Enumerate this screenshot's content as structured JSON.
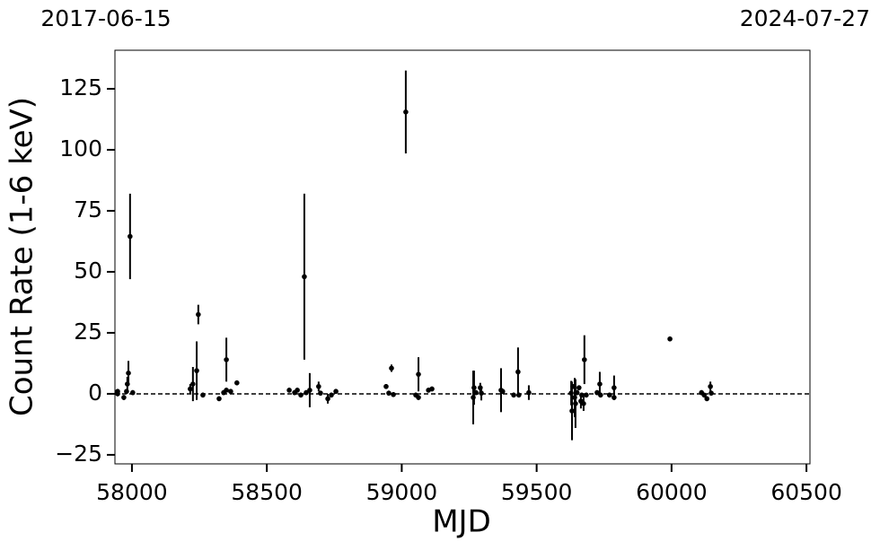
{
  "chart_data": {
    "type": "errorbar-scatter",
    "xlabel": "MJD",
    "ylabel": "Count Rate (1-6 keV)",
    "top_labels": [
      "2017-06-15",
      "2024-07-27"
    ],
    "x": [
      57947,
      57947,
      57970,
      57983,
      57987,
      57993,
      57980,
      58003,
      58216,
      58226,
      58240,
      58246,
      58263,
      58323,
      58340,
      58350,
      58350,
      58366,
      58389,
      58583,
      58603,
      58613,
      58626,
      58639,
      58646,
      58659,
      58692,
      58699,
      58726,
      58739,
      58756,
      58942,
      58952,
      58962,
      58969,
      59015,
      59052,
      59062,
      59062,
      59099,
      59112,
      59265,
      59268,
      59275,
      59291,
      59295,
      59368,
      59374,
      59415,
      59431,
      59434,
      59471,
      59628,
      59631,
      59634,
      59641,
      59644,
      59650,
      59657,
      59664,
      59667,
      59674,
      59677,
      59684,
      59724,
      59734,
      59737,
      59770,
      59787,
      59787,
      59994,
      60111,
      60121,
      60131,
      60144,
      60147
    ],
    "values": [
      1,
      0,
      -1.5,
      4,
      8.5,
      64.5,
      1,
      0.5,
      2,
      4,
      9.5,
      32.5,
      -0.5,
      -2,
      0.5,
      14,
      1.5,
      1,
      4.5,
      1.5,
      0.5,
      1.5,
      -0.5,
      48,
      0.5,
      1.5,
      3,
      0.3,
      -2,
      -0.5,
      1,
      3,
      0.3,
      10.5,
      -0.3,
      115.5,
      -0.5,
      8,
      -1.5,
      1.5,
      2,
      -1.5,
      2.5,
      0.5,
      2.5,
      0.3,
      1.5,
      1,
      -0.5,
      9,
      -0.5,
      0.5,
      0.3,
      -7,
      3,
      -1.5,
      -4,
      0.5,
      2.5,
      -3,
      -0.5,
      -4,
      14,
      -0.5,
      0.5,
      4,
      -0.5,
      -0.5,
      2.5,
      -1.5,
      22.5,
      0.5,
      -0.5,
      -2,
      3,
      0.3
    ],
    "errors": [
      1,
      1,
      1,
      3,
      5,
      17.5,
      1,
      1,
      2,
      7,
      12,
      4,
      1,
      1,
      1,
      9,
      1,
      1,
      1,
      1,
      1,
      1,
      1,
      34,
      1,
      7,
      2,
      1,
      2,
      1,
      1,
      1,
      1,
      1.5,
      1,
      17,
      1,
      7,
      1,
      1,
      1,
      11,
      7,
      1,
      2,
      3,
      9,
      1,
      1,
      10,
      1,
      3,
      5,
      12,
      1,
      8,
      10,
      1,
      1,
      3,
      1,
      3,
      10,
      1,
      1,
      5,
      1,
      1,
      5,
      1,
      1,
      1,
      1,
      1,
      2,
      1
    ],
    "color": "#000000",
    "reference_line": 0,
    "xlim": [
      57937,
      60513
    ],
    "ylim": [
      -28.7,
      140.8
    ],
    "xticks": [
      58000,
      58500,
      59000,
      59500,
      60000,
      60500
    ],
    "yticks": [
      {
        "value": -25,
        "label": "−25"
      },
      0,
      25,
      50,
      75,
      100,
      125
    ]
  }
}
